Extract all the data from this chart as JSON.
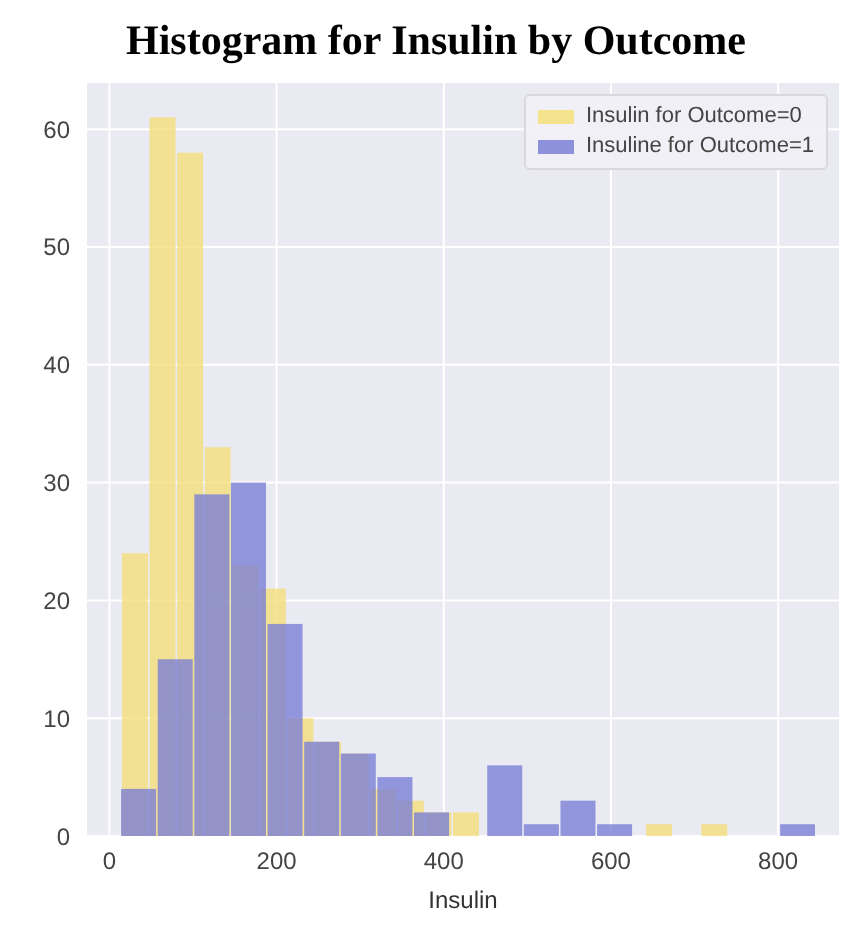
{
  "chart_data": {
    "type": "histogram",
    "title": "Histogram for Insulin by Outcome",
    "xlabel": "Insulin",
    "bins": [
      15,
      48,
      81,
      114,
      147,
      180,
      213,
      246,
      279,
      312,
      345,
      378,
      411,
      444,
      477,
      510,
      543,
      576,
      609,
      642,
      675,
      708,
      741
    ],
    "series": [
      {
        "name": "Insulin for Outcome=0",
        "color": "#f5df7a",
        "values": [
          24,
          61,
          58,
          33,
          23,
          21,
          10,
          8,
          7,
          4,
          3,
          2,
          2,
          0,
          0,
          0,
          0,
          0,
          0,
          1,
          0,
          1
        ]
      },
      {
        "name": "Insuline for Outcome=1",
        "color": "#7b7fd6",
        "bins": [
          14,
          57.8,
          101.6,
          145.4,
          189.2,
          233,
          276.8,
          320.6,
          364.4,
          408.2,
          452,
          495.8,
          539.6,
          583.4,
          627.2,
          671,
          714.8,
          758.6,
          802.4,
          846
        ],
        "values": [
          4,
          15,
          29,
          30,
          18,
          8,
          7,
          5,
          2,
          0,
          6,
          1,
          3,
          1,
          0,
          0,
          0,
          0,
          1
        ]
      }
    ],
    "xlim": [
      -28,
      874
    ],
    "xticks": [
      0,
      200,
      400,
      600,
      800
    ],
    "ylim": [
      0,
      64
    ],
    "yticks": [
      0,
      10,
      20,
      30,
      40,
      50,
      60
    ],
    "grid": true,
    "legend": "top right"
  }
}
